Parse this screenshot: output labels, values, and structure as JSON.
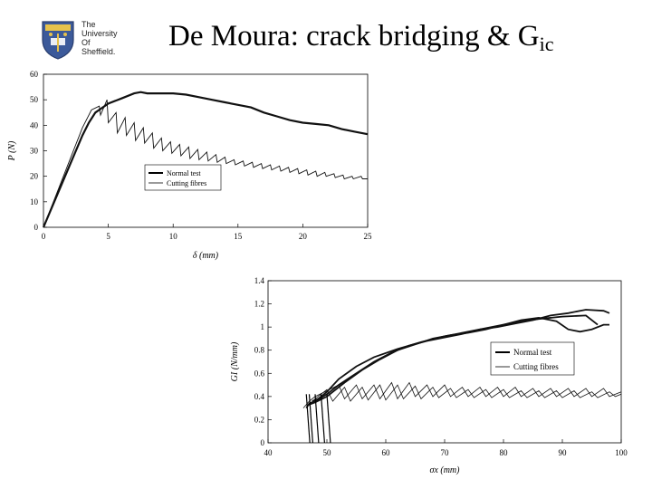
{
  "logo": {
    "lines": [
      "The",
      "University",
      "Of",
      "Sheffield."
    ]
  },
  "title": {
    "main": "De Moura: crack bridging & G",
    "sub": "ic"
  },
  "chart_data": [
    {
      "type": "line",
      "xlabel": "δ (mm)",
      "ylabel": "P (N)",
      "xlim": [
        0,
        25
      ],
      "ylim": [
        0,
        60
      ],
      "xticks": [
        0,
        5,
        10,
        15,
        20,
        25
      ],
      "yticks": [
        0,
        10,
        20,
        30,
        40,
        50,
        60
      ],
      "grid": false,
      "legend_position": "center",
      "series": [
        {
          "name": "Normal test",
          "style": "thick",
          "x": [
            0,
            1,
            2,
            3,
            3.5,
            4,
            5,
            6,
            7,
            7.5,
            8,
            9,
            10,
            11,
            12,
            13,
            14,
            15,
            16,
            17,
            18,
            19,
            20,
            21,
            22,
            23,
            24,
            25
          ],
          "y": [
            0,
            12,
            24,
            36,
            41,
            45,
            48.5,
            50.5,
            52.5,
            53,
            52.5,
            52.5,
            52.5,
            52,
            51,
            50,
            49,
            48,
            47,
            45,
            43.5,
            42,
            41,
            40.5,
            40,
            38.5,
            37.5,
            36.5
          ]
        },
        {
          "name": "Cutting fibres",
          "style": "thin",
          "x": [
            0,
            1,
            2,
            3,
            3.7,
            4.3,
            4.4,
            4.9,
            5.0,
            5.6,
            5.7,
            6.3,
            6.4,
            7.0,
            7.1,
            7.7,
            7.8,
            8.4,
            8.5,
            9.1,
            9.2,
            9.8,
            9.9,
            10.5,
            10.6,
            11.2,
            11.3,
            11.9,
            12.0,
            12.6,
            12.7,
            13.3,
            13.4,
            14.0,
            14.1,
            14.7,
            14.8,
            15.4,
            15.5,
            16.1,
            16.2,
            16.8,
            16.9,
            17.5,
            17.6,
            18.2,
            18.3,
            18.9,
            19.0,
            19.6,
            19.7,
            20.3,
            20.4,
            21.0,
            21.1,
            21.7,
            21.8,
            22.4,
            22.5,
            23.1,
            23.2,
            23.8,
            23.9,
            24.5,
            24.6,
            25
          ],
          "y": [
            0,
            13,
            26,
            39,
            46,
            47.5,
            44,
            50,
            41,
            45,
            37,
            43,
            36,
            41,
            34,
            39,
            33,
            37,
            31,
            35,
            30,
            33.5,
            29,
            32.5,
            28,
            31.5,
            27,
            30.5,
            26.5,
            29.5,
            26,
            28.5,
            25.5,
            27.5,
            25,
            26.5,
            24.5,
            26,
            24,
            25.5,
            23.5,
            25,
            23,
            24.5,
            22.5,
            24,
            22,
            23.5,
            21.5,
            23,
            21,
            22.5,
            20.5,
            22,
            20,
            21.5,
            20,
            21,
            19.5,
            20.5,
            19,
            20,
            19,
            20,
            19,
            19
          ]
        }
      ]
    },
    {
      "type": "line",
      "xlabel": "σx (mm)",
      "ylabel": "GI (N/mm)",
      "xlim": [
        40,
        100
      ],
      "ylim": [
        0,
        1.4
      ],
      "xticks": [
        40,
        50,
        60,
        70,
        80,
        90,
        100
      ],
      "ytick_labels": [
        "0",
        "0.2",
        "0.4",
        "0.6",
        "0.8",
        "1",
        "1.2",
        "1.4"
      ],
      "yticks": [
        0,
        0.2,
        0.4,
        0.6,
        0.8,
        1.0,
        1.2,
        1.4
      ],
      "grid": false,
      "legend_position": "center-right",
      "series": [
        {
          "name": "Normal test",
          "style": "thick",
          "curves": [
            {
              "x": [
                46.5,
                47,
                48,
                50,
                52,
                55,
                58,
                61,
                64,
                67,
                70,
                73,
                76,
                79,
                82,
                85,
                88,
                91,
                94,
                97,
                98
              ],
              "y": [
                0.3,
                0.34,
                0.36,
                0.42,
                0.5,
                0.6,
                0.7,
                0.78,
                0.84,
                0.88,
                0.91,
                0.94,
                0.98,
                1.0,
                1.03,
                1.06,
                1.1,
                1.12,
                1.15,
                1.14,
                1.12
              ]
            },
            {
              "x": [
                47,
                48,
                50,
                53,
                56,
                59,
                62,
                65,
                68,
                71,
                74,
                77,
                80,
                83,
                86,
                89,
                91,
                93,
                95,
                97,
                98
              ],
              "y": [
                0.33,
                0.35,
                0.4,
                0.52,
                0.63,
                0.72,
                0.8,
                0.85,
                0.9,
                0.93,
                0.95,
                0.98,
                1.02,
                1.06,
                1.08,
                1.05,
                0.98,
                0.96,
                0.98,
                1.02,
                1.02
              ]
            },
            {
              "x": [
                47.5,
                48.5,
                50,
                52,
                55,
                58,
                62,
                66,
                70,
                74,
                78,
                82,
                86,
                90,
                94,
                96
              ],
              "y": [
                0.36,
                0.38,
                0.44,
                0.55,
                0.66,
                0.74,
                0.81,
                0.87,
                0.92,
                0.96,
                1.0,
                1.04,
                1.07,
                1.09,
                1.1,
                1.02
              ]
            }
          ]
        },
        {
          "name": "Cutting fibres",
          "style": "thin",
          "curves": [
            {
              "x": [
                46,
                47,
                48,
                50,
                52,
                53,
                55,
                56,
                58,
                59,
                61,
                62,
                64,
                65,
                67,
                68,
                70,
                71,
                73,
                74,
                76,
                77,
                79,
                80,
                82,
                83,
                85,
                86,
                88,
                89,
                91,
                92,
                94,
                95,
                97,
                98,
                100
              ],
              "y": [
                0.3,
                0.36,
                0.4,
                0.45,
                0.5,
                0.38,
                0.5,
                0.38,
                0.5,
                0.38,
                0.52,
                0.38,
                0.52,
                0.4,
                0.5,
                0.4,
                0.5,
                0.4,
                0.48,
                0.4,
                0.48,
                0.4,
                0.48,
                0.4,
                0.48,
                0.4,
                0.47,
                0.4,
                0.47,
                0.4,
                0.47,
                0.4,
                0.47,
                0.4,
                0.47,
                0.4,
                0.44
              ]
            },
            {
              "x": [
                47,
                48,
                50,
                51,
                53,
                54,
                56,
                57,
                59,
                60,
                62,
                63,
                65,
                66,
                68,
                69,
                71,
                72,
                74,
                75,
                77,
                78,
                80,
                81,
                83,
                84,
                86,
                87,
                89,
                90,
                92,
                93,
                95,
                96,
                98,
                99,
                100
              ],
              "y": [
                0.32,
                0.38,
                0.46,
                0.36,
                0.48,
                0.36,
                0.48,
                0.37,
                0.5,
                0.37,
                0.5,
                0.38,
                0.49,
                0.38,
                0.48,
                0.39,
                0.47,
                0.39,
                0.46,
                0.39,
                0.46,
                0.39,
                0.46,
                0.39,
                0.45,
                0.39,
                0.45,
                0.39,
                0.45,
                0.39,
                0.45,
                0.39,
                0.44,
                0.39,
                0.44,
                0.4,
                0.42
              ]
            }
          ]
        }
      ],
      "drops": [
        {
          "x": [
            46.5,
            47,
            48,
            49,
            50
          ],
          "y": [
            0.3,
            0.0,
            0.0,
            0.0,
            0.0
          ]
        }
      ]
    }
  ],
  "colors": {
    "text": "#000000",
    "curve": "#111111"
  }
}
